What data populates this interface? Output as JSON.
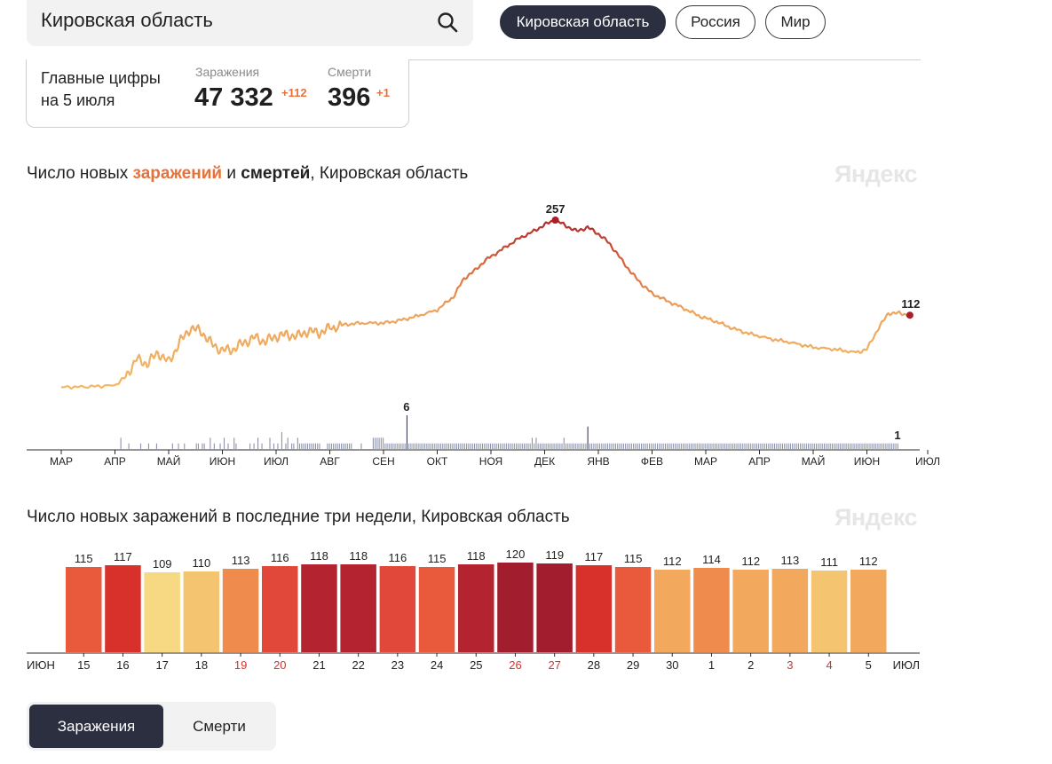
{
  "search": {
    "value": "Кировская область"
  },
  "region_tabs": [
    {
      "label": "Кировская область",
      "active": true
    },
    {
      "label": "Россия",
      "active": false
    },
    {
      "label": "Мир",
      "active": false
    }
  ],
  "stats": {
    "heading_line1": "Главные цифры",
    "heading_line2": "на 5 июля",
    "infections": {
      "label": "Заражения",
      "value": "47 332",
      "delta": "+112"
    },
    "deaths": {
      "label": "Смерти",
      "value": "396",
      "delta": "+1"
    }
  },
  "watermark": "Яндекс",
  "chart_data": [
    {
      "type": "line",
      "title_parts": {
        "prefix": "Число новых ",
        "infections": "заражений",
        "conj": " и ",
        "deaths": "смертей",
        "suffix": ", Кировская область"
      },
      "x_ticks": [
        "МАР",
        "АПР",
        "МАЙ",
        "ИЮН",
        "ИЮЛ",
        "АВГ",
        "СЕН",
        "ОКТ",
        "НОЯ",
        "ДЕК",
        "ЯНВ",
        "ФЕВ",
        "МАР",
        "АПР",
        "МАЙ",
        "ИЮН",
        "ИЮЛ"
      ],
      "series": [
        {
          "role": "infections",
          "x": [
            0,
            0.5,
            1.0,
            1.2,
            1.4,
            1.6,
            1.8,
            2.0,
            2.2,
            2.4,
            2.6,
            2.8,
            3.0,
            3.2,
            3.4,
            3.6,
            3.8,
            4.0,
            4.2,
            4.4,
            4.6,
            4.8,
            5.0,
            5.3,
            5.6,
            6.0,
            6.3,
            6.6,
            7.0,
            7.3,
            7.5,
            7.7,
            7.9,
            8.2,
            8.5,
            8.8,
            9.0,
            9.2,
            9.4,
            9.6,
            9.8,
            10.0,
            10.2,
            10.4,
            10.6,
            10.8,
            11.0,
            11.3,
            11.6,
            11.9,
            12.2,
            12.5,
            12.8,
            13.2,
            13.6,
            14.0,
            14.4,
            14.8,
            15.0,
            15.2,
            15.4,
            15.6,
            15.8
          ],
          "values": [
            2,
            3,
            5,
            18,
            45,
            38,
            55,
            40,
            70,
            92,
            88,
            68,
            58,
            60,
            70,
            78,
            72,
            80,
            82,
            80,
            88,
            85,
            92,
            98,
            100,
            100,
            104,
            110,
            120,
            140,
            168,
            180,
            196,
            212,
            228,
            240,
            250,
            257,
            248,
            240,
            246,
            236,
            222,
            200,
            178,
            160,
            145,
            133,
            122,
            110,
            102,
            92,
            84,
            76,
            70,
            63,
            60,
            55,
            60,
            90,
            115,
            115,
            112
          ],
          "peak_label": "257",
          "last_label": "112"
        },
        {
          "role": "deaths",
          "max_label": "6",
          "last_label": "1",
          "values": [
            0,
            0,
            0,
            0,
            0,
            0,
            0,
            0,
            0,
            0,
            0,
            0,
            0,
            0,
            0,
            0,
            0,
            0,
            0,
            0,
            0,
            0,
            0,
            0,
            0,
            0,
            0,
            0,
            0,
            0,
            0,
            0,
            0,
            0,
            0,
            0,
            2,
            0,
            0,
            0,
            1,
            0,
            0,
            0,
            0,
            0,
            1,
            0,
            0,
            0,
            1,
            0,
            0,
            0,
            1,
            0,
            0,
            0,
            0,
            0,
            0,
            0,
            1,
            0,
            0,
            1,
            0,
            0,
            1,
            0,
            0,
            0,
            0,
            0,
            1,
            1,
            0,
            1,
            1,
            0,
            0,
            2,
            0,
            1,
            0,
            0,
            1,
            0,
            2,
            0,
            1,
            0,
            0,
            2,
            1,
            0,
            0,
            0,
            0,
            0,
            0,
            1,
            0,
            1,
            0,
            2,
            0,
            1,
            0,
            0,
            0,
            2,
            0,
            1,
            0,
            1,
            0,
            3,
            0,
            1,
            2,
            0,
            1,
            1,
            0,
            2,
            1,
            1,
            1,
            1,
            1,
            1,
            1,
            1,
            1,
            1,
            1,
            0,
            0,
            0,
            1,
            1,
            1,
            1,
            1,
            1,
            1,
            1,
            1,
            1,
            1,
            1,
            1,
            0,
            0,
            0,
            0,
            1,
            0,
            0,
            0,
            0,
            0,
            2,
            2,
            2,
            2,
            2,
            2,
            1,
            1,
            1,
            1,
            1,
            1,
            1,
            1,
            1,
            1,
            1,
            6,
            1,
            1,
            1,
            1,
            1,
            1,
            1,
            1,
            1,
            1,
            1,
            1,
            1,
            1,
            1,
            1,
            1,
            1,
            1,
            1,
            1,
            1,
            1,
            1,
            1,
            1,
            1,
            1,
            1,
            1,
            1,
            1,
            1,
            1,
            1,
            1,
            1,
            1,
            1,
            1,
            1,
            1,
            1,
            1,
            1,
            1,
            1,
            1,
            1,
            1,
            1,
            1,
            1,
            1,
            1,
            1,
            1,
            1,
            1,
            1,
            1,
            1,
            2,
            1,
            2,
            1,
            1,
            1,
            1,
            1,
            1,
            1,
            1,
            1,
            1,
            1,
            1,
            1,
            2,
            1,
            1,
            1,
            1,
            1,
            1,
            1,
            1,
            1,
            1,
            1,
            4,
            1,
            1,
            1,
            1,
            1,
            1,
            1,
            1,
            1,
            1,
            1,
            1,
            1,
            1,
            1,
            1,
            1,
            1,
            1,
            1,
            1,
            1,
            1,
            1,
            1,
            1,
            1,
            1,
            1,
            1,
            1,
            1,
            1,
            1,
            1,
            1,
            1,
            1,
            1,
            1,
            1,
            1,
            1,
            1,
            1,
            1,
            1,
            1,
            1,
            1,
            1,
            1,
            1,
            1,
            1,
            1,
            1,
            1,
            1,
            1,
            1,
            1,
            1,
            1,
            1,
            1,
            1,
            1,
            1,
            1,
            1,
            1,
            1,
            1,
            1,
            1,
            1,
            1,
            1,
            1,
            1,
            1,
            1,
            1,
            1,
            1,
            1,
            1,
            1,
            1,
            1,
            1,
            1,
            1,
            1,
            1,
            1,
            1,
            1,
            1,
            1,
            1,
            1,
            1,
            1,
            1,
            1,
            1,
            1,
            1,
            1,
            1,
            1,
            1,
            1,
            1,
            1,
            1,
            1,
            1,
            1,
            1,
            1,
            1,
            1,
            1,
            1,
            1,
            1,
            1,
            1,
            1,
            1,
            1,
            1,
            1,
            1,
            1,
            1,
            1,
            1,
            1,
            1,
            1,
            1,
            1,
            1,
            1,
            1,
            1,
            1,
            1,
            1,
            1,
            1,
            1
          ]
        }
      ],
      "grid": false
    },
    {
      "type": "bar",
      "title": "Число новых заражений в последние три недели, Кировская область",
      "start_label": "ИЮН",
      "end_label": "ИЮЛ",
      "categories": [
        "15",
        "16",
        "17",
        "18",
        "19",
        "20",
        "21",
        "22",
        "23",
        "24",
        "25",
        "26",
        "27",
        "28",
        "29",
        "30",
        "1",
        "2",
        "3",
        "4",
        "5"
      ],
      "values": [
        115,
        117,
        109,
        110,
        113,
        116,
        118,
        118,
        116,
        115,
        118,
        120,
        119,
        117,
        115,
        112,
        114,
        112,
        113,
        111,
        112
      ],
      "weekend": [
        false,
        false,
        false,
        false,
        true,
        true,
        false,
        false,
        false,
        false,
        false,
        true,
        true,
        false,
        false,
        false,
        false,
        false,
        true,
        true,
        false
      ],
      "colors": [
        "#e95a3c",
        "#d8312c",
        "#f7d983",
        "#f5c470",
        "#ef8b4d",
        "#e2483a",
        "#b42430",
        "#b42430",
        "#e2483a",
        "#e95a3c",
        "#b42430",
        "#a21e2e",
        "#a21e2e",
        "#d8312c",
        "#e95a3c",
        "#f2a95d",
        "#ef8b4d",
        "#f2a95d",
        "#f2a95d",
        "#f5c470",
        "#f2a95d"
      ],
      "weekend_color": "#d8312c"
    }
  ],
  "metric_toggle": [
    {
      "label": "Заражения",
      "active": true
    },
    {
      "label": "Смерти",
      "active": false
    }
  ]
}
